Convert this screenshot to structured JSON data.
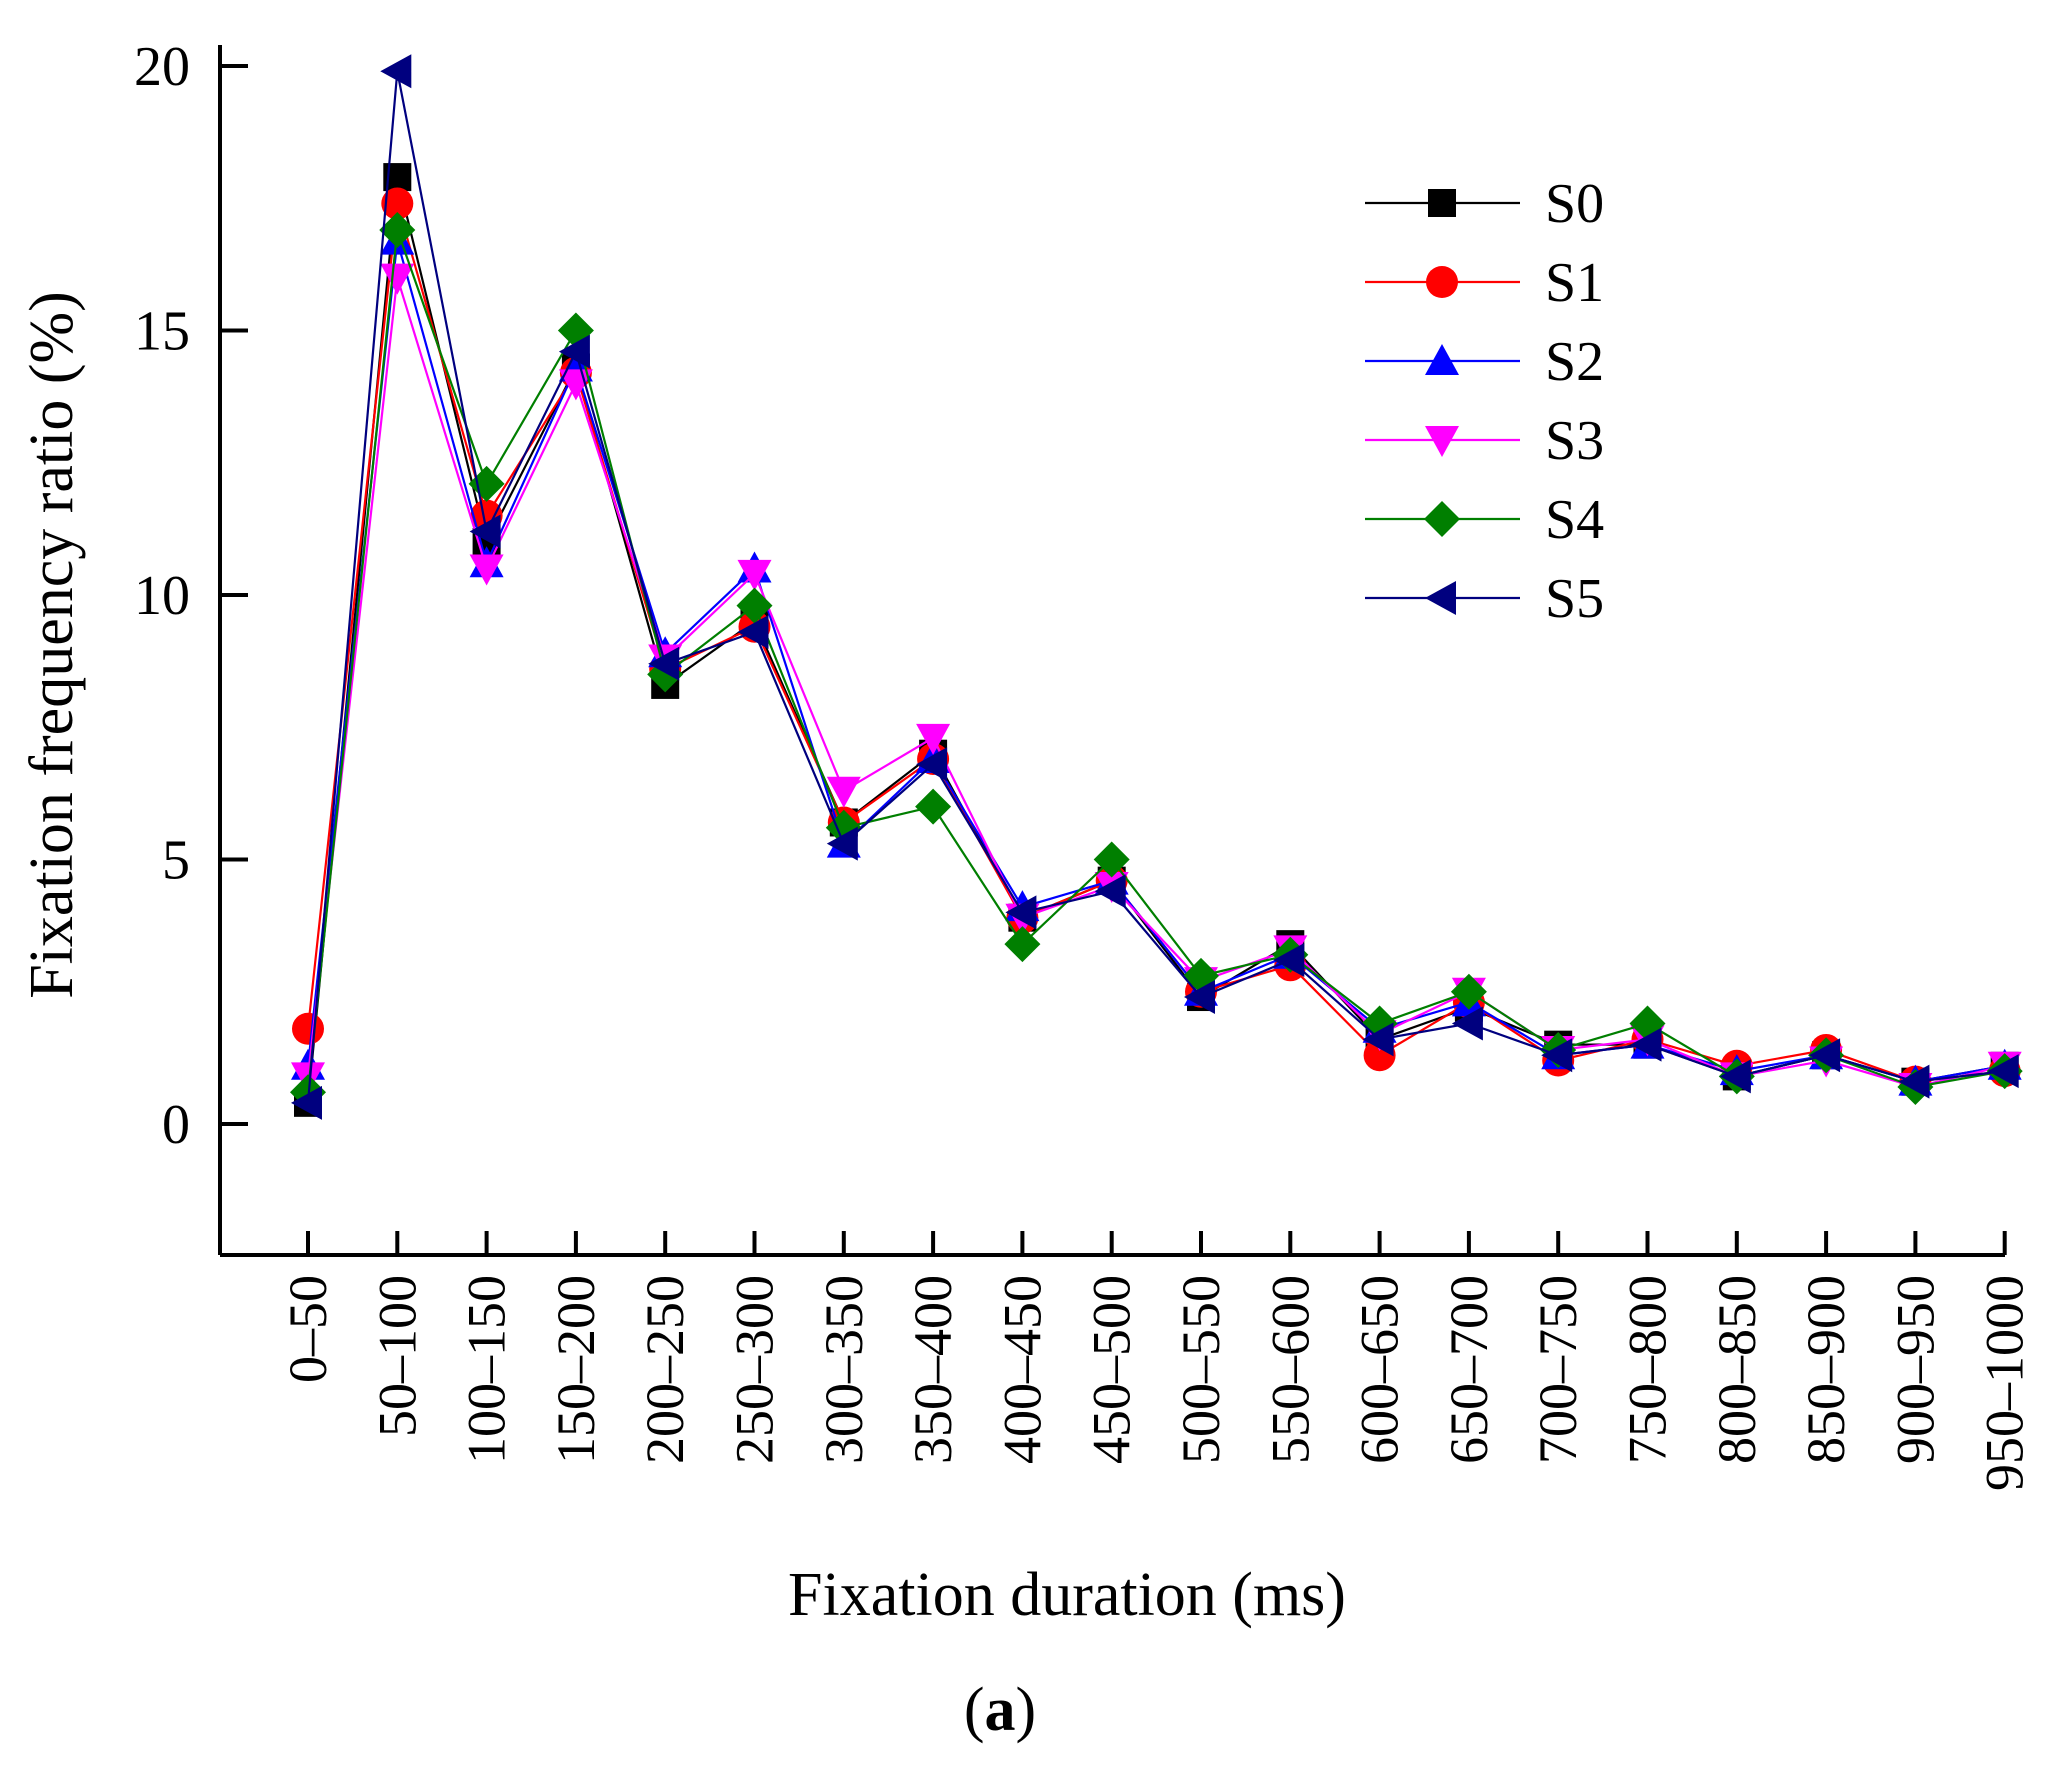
{
  "chart_data": {
    "type": "line",
    "title": "",
    "xlabel": "Fixation duration (ms)",
    "ylabel": "Fixation frequency ratio (%)",
    "ylim": [
      -2.5,
      20
    ],
    "yticks": [
      0,
      5,
      10,
      15,
      20
    ],
    "categories": [
      "0–50",
      "50–100",
      "100–150",
      "150–200",
      "200–250",
      "250–300",
      "300–350",
      "350–400",
      "400–450",
      "450–500",
      "500–550",
      "550–600",
      "600–650",
      "650–700",
      "700–750",
      "750–800",
      "800–850",
      "850–900",
      "900–950",
      "950–1000"
    ],
    "legend_position": "top-right",
    "series": [
      {
        "name": "S0",
        "color": "#000000",
        "marker": "square",
        "values": [
          0.4,
          17.9,
          11.0,
          14.3,
          8.3,
          9.5,
          5.7,
          7.0,
          3.9,
          4.6,
          2.4,
          3.4,
          1.6,
          2.2,
          1.5,
          1.5,
          0.9,
          1.3,
          0.8,
          1.1
        ]
      },
      {
        "name": "S1",
        "color": "#ff0000",
        "marker": "circle",
        "values": [
          1.8,
          17.4,
          11.5,
          14.2,
          8.6,
          9.4,
          5.7,
          6.9,
          3.9,
          4.6,
          2.5,
          3.0,
          1.3,
          2.3,
          1.2,
          1.6,
          1.1,
          1.4,
          0.8,
          1.0
        ]
      },
      {
        "name": "S2",
        "color": "#0000ff",
        "marker": "triangle-up",
        "values": [
          1.1,
          16.7,
          10.6,
          14.3,
          8.9,
          10.5,
          5.3,
          6.9,
          4.1,
          4.6,
          2.5,
          3.2,
          1.8,
          2.3,
          1.3,
          1.5,
          1.0,
          1.3,
          0.8,
          1.1
        ]
      },
      {
        "name": "S3",
        "color": "#ff00ff",
        "marker": "triangle-down",
        "values": [
          0.9,
          16.0,
          10.5,
          14.0,
          8.8,
          10.4,
          6.3,
          7.3,
          3.9,
          4.5,
          2.7,
          3.3,
          1.7,
          2.5,
          1.4,
          1.6,
          0.9,
          1.2,
          0.7,
          1.1
        ]
      },
      {
        "name": "S4",
        "color": "#007f00",
        "marker": "diamond",
        "values": [
          0.6,
          16.9,
          12.1,
          15.0,
          8.5,
          9.8,
          5.6,
          6.0,
          3.4,
          5.0,
          2.8,
          3.2,
          1.9,
          2.5,
          1.4,
          1.9,
          0.9,
          1.3,
          0.7,
          1.0
        ]
      },
      {
        "name": "S5",
        "color": "#00007f",
        "marker": "triangle-left",
        "values": [
          0.4,
          19.9,
          11.2,
          14.6,
          8.7,
          9.3,
          5.3,
          6.8,
          4.0,
          4.4,
          2.4,
          3.1,
          1.6,
          1.9,
          1.3,
          1.5,
          0.9,
          1.3,
          0.8,
          1.0
        ]
      }
    ]
  },
  "caption": {
    "open": "(",
    "letter": "a",
    "close": ")"
  }
}
